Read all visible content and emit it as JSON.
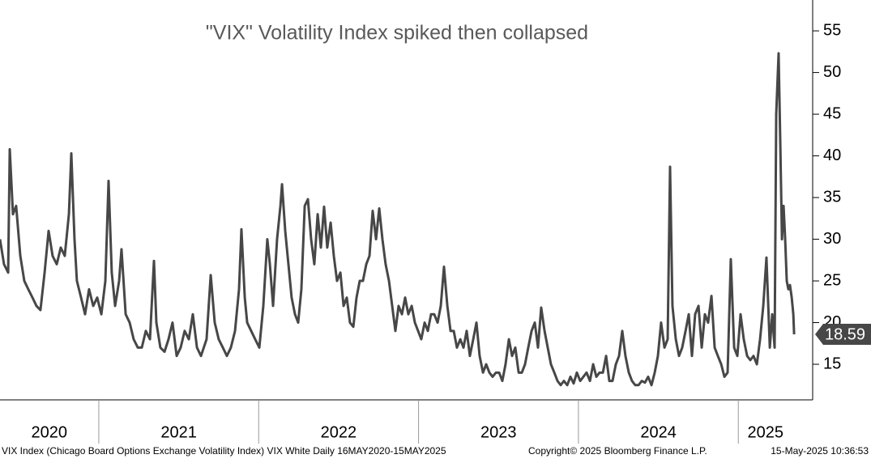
{
  "chart_data": {
    "type": "line",
    "title": "\"VIX\" Volatility Index spiked then collapsed",
    "footer_left": "VIX Index (Chicago Board Options Exchange Volatility Index) VIX White  Daily 16MAY2020-15MAY2025",
    "footer_center": "Copyright© 2025 Bloomberg Finance L.P.",
    "footer_right": "15-May-2025 10:36:53",
    "xlim": [
      2020.382,
      2025.465
    ],
    "ylim": [
      10.73,
      58.7
    ],
    "yticks": [
      15,
      20,
      25,
      30,
      35,
      40,
      45,
      50,
      55
    ],
    "y_axis_side": "right",
    "xticks": [
      {
        "value": 2020.69,
        "label": "2020"
      },
      {
        "value": 2021.5,
        "label": "2021"
      },
      {
        "value": 2022.5,
        "label": "2022"
      },
      {
        "value": 2023.5,
        "label": "2023"
      },
      {
        "value": 2024.5,
        "label": "2024"
      },
      {
        "value": 2025.17,
        "label": "2025"
      }
    ],
    "x_separators": [
      2021,
      2022,
      2023,
      2024,
      2025
    ],
    "series": [
      {
        "name": "VIX Index",
        "color": "#474747",
        "x": [
          2020.382,
          2020.407,
          2020.433,
          2020.443,
          2020.463,
          2020.483,
          2020.509,
          2020.534,
          2020.559,
          2020.585,
          2020.61,
          2020.635,
          2020.661,
          2020.686,
          2020.711,
          2020.737,
          2020.762,
          2020.787,
          2020.813,
          2020.828,
          2020.848,
          2020.863,
          2020.889,
          2020.914,
          2020.939,
          2020.965,
          2020.99,
          2021.016,
          2021.041,
          2021.061,
          2021.081,
          2021.102,
          2021.127,
          2021.142,
          2021.168,
          2021.193,
          2021.218,
          2021.244,
          2021.269,
          2021.294,
          2021.32,
          2021.345,
          2021.36,
          2021.385,
          2021.411,
          2021.436,
          2021.461,
          2021.487,
          2021.512,
          2021.537,
          2021.563,
          2021.588,
          2021.614,
          2021.639,
          2021.674,
          2021.7,
          2021.725,
          2021.75,
          2021.776,
          2021.801,
          2021.826,
          2021.852,
          2021.877,
          2021.892,
          2021.913,
          2021.928,
          2021.953,
          2021.978,
          2022.004,
          2022.029,
          2022.054,
          2022.07,
          2022.09,
          2022.115,
          2022.136,
          2022.146,
          2022.166,
          2022.186,
          2022.206,
          2022.227,
          2022.247,
          2022.267,
          2022.288,
          2022.308,
          2022.328,
          2022.348,
          2022.369,
          2022.389,
          2022.409,
          2022.429,
          2022.45,
          2022.47,
          2022.49,
          2022.511,
          2022.531,
          2022.551,
          2022.571,
          2022.592,
          2022.612,
          2022.632,
          2022.652,
          2022.673,
          2022.693,
          2022.713,
          2022.734,
          2022.754,
          2022.774,
          2022.794,
          2022.815,
          2022.835,
          2022.855,
          2022.875,
          2022.896,
          2022.916,
          2022.936,
          2022.957,
          2022.977,
          2022.997,
          2023.017,
          2023.038,
          2023.058,
          2023.078,
          2023.098,
          2023.119,
          2023.139,
          2023.159,
          2023.18,
          2023.2,
          2023.22,
          2023.24,
          2023.261,
          2023.281,
          2023.301,
          2023.321,
          2023.342,
          2023.362,
          2023.382,
          2023.403,
          2023.423,
          2023.443,
          2023.463,
          2023.484,
          2023.504,
          2023.524,
          2023.544,
          2023.565,
          2023.585,
          2023.605,
          2023.626,
          2023.646,
          2023.666,
          2023.686,
          2023.707,
          2023.727,
          2023.747,
          2023.767,
          2023.788,
          2023.808,
          2023.828,
          2023.849,
          2023.869,
          2023.889,
          2023.909,
          2023.93,
          2023.95,
          2023.97,
          2023.99,
          2024.011,
          2024.031,
          2024.051,
          2024.072,
          2024.092,
          2024.112,
          2024.132,
          2024.153,
          2024.173,
          2024.193,
          2024.213,
          2024.234,
          2024.254,
          2024.274,
          2024.294,
          2024.315,
          2024.335,
          2024.355,
          2024.376,
          2024.396,
          2024.416,
          2024.436,
          2024.457,
          2024.477,
          2024.497,
          2024.517,
          2024.538,
          2024.558,
          2024.573,
          2024.588,
          2024.609,
          2024.629,
          2024.649,
          2024.67,
          2024.69,
          2024.71,
          2024.73,
          2024.751,
          2024.771,
          2024.791,
          2024.811,
          2024.832,
          2024.852,
          2024.872,
          2024.893,
          2024.913,
          2024.933,
          2024.953,
          2024.974,
          2024.994,
          2025.014,
          2025.034,
          2025.055,
          2025.075,
          2025.095,
          2025.116,
          2025.136,
          2025.156,
          2025.176,
          2025.197,
          2025.212,
          2025.227,
          2025.237,
          2025.252,
          2025.263,
          2025.273,
          2025.283,
          2025.293,
          2025.303,
          2025.313,
          2025.323,
          2025.334,
          2025.344,
          2025.349
        ],
        "values": [
          30,
          27,
          26,
          40.8,
          33,
          34,
          28,
          25,
          24,
          23,
          22,
          21.5,
          26,
          31,
          28,
          27,
          29,
          28,
          33,
          40.3,
          30,
          25,
          23,
          21,
          24,
          22,
          23,
          21,
          25,
          37,
          26,
          22,
          25,
          28.8,
          21,
          20,
          18,
          17,
          17,
          19,
          18,
          27.4,
          20,
          17,
          16.5,
          18,
          20,
          16,
          17,
          19,
          18,
          21,
          17,
          16,
          18,
          25.7,
          20,
          18,
          17,
          16,
          17,
          19,
          24,
          31.2,
          23,
          20,
          19,
          18,
          17,
          22,
          30,
          27,
          22,
          30,
          34,
          36.6,
          31,
          27,
          23,
          21,
          20,
          24,
          34,
          34.8,
          30,
          27,
          33,
          29,
          33.9,
          29,
          32,
          28,
          25,
          26,
          22,
          23,
          20,
          19.5,
          23,
          25,
          25,
          27,
          28,
          33.4,
          30,
          33.7,
          30,
          27,
          25,
          22,
          19,
          22,
          21,
          23,
          21,
          22,
          20,
          19,
          18,
          20,
          19,
          21,
          21,
          20,
          22,
          26.7,
          22,
          19,
          19,
          17,
          18,
          17,
          19,
          16,
          18,
          20,
          16,
          14,
          15,
          14,
          13.5,
          14,
          14,
          13,
          15,
          18,
          16,
          17,
          14,
          14,
          15,
          17,
          19,
          20,
          17,
          21.8,
          19,
          17,
          15,
          14,
          13,
          12.5,
          13,
          12.5,
          13.5,
          12.7,
          14,
          13,
          13.5,
          14,
          13,
          15,
          13.5,
          14,
          14,
          16,
          13,
          13,
          15,
          16,
          19,
          16,
          14,
          13,
          12.5,
          12.5,
          13,
          12.8,
          13.5,
          12.5,
          14,
          16,
          20,
          17,
          18,
          38.7,
          22,
          18,
          16,
          17,
          19,
          21,
          16,
          21,
          22,
          17,
          21,
          20,
          23.2,
          17,
          16,
          15,
          13.5,
          14,
          27.6,
          17,
          16,
          21,
          18,
          16,
          15.5,
          16,
          15,
          18,
          22,
          27.8,
          17,
          21,
          17,
          45,
          52.3,
          41,
          30,
          34,
          30,
          25,
          24,
          24.5,
          23,
          21,
          18.59
        ]
      }
    ]
  }
}
